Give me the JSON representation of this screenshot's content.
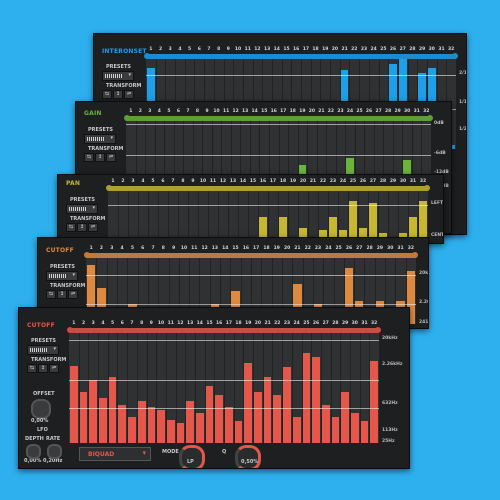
{
  "colors": {
    "background": "#2fb0ee",
    "interonset": "#1e9fe8",
    "gain": "#6bb43c",
    "pan": "#c7b732",
    "cutoff_back": "#dd8a40",
    "cutoff_front": "#e4574a"
  },
  "common": {
    "presets_label": "PRESETS",
    "transform_label": "TRANSFORM",
    "steps": [
      "1",
      "2",
      "3",
      "4",
      "5",
      "6",
      "7",
      "8",
      "9",
      "10",
      "11",
      "12",
      "13",
      "14",
      "15",
      "16",
      "17",
      "18",
      "19",
      "20",
      "21",
      "22",
      "23",
      "24",
      "25",
      "26",
      "27",
      "28",
      "29",
      "30",
      "31",
      "32"
    ]
  },
  "panels": [
    {
      "id": "interonset",
      "title": "INTERONSET",
      "color": "#1e9fe8",
      "right_labels": [
        "2/1",
        "1/1",
        "1/2"
      ],
      "values": [
        0.9,
        0.32,
        0.18,
        0.05,
        0.22,
        0.1,
        0.05,
        0.12,
        0.05,
        0.05,
        0.05,
        0.14,
        0.05,
        0.05,
        0.05,
        0.05,
        0.05,
        0.05,
        0.05,
        0.08,
        0.88,
        0.05,
        0.05,
        0.05,
        0.05,
        0.95,
        1.0,
        0.05,
        0.85,
        0.9,
        0.05,
        0.05
      ]
    },
    {
      "id": "gain",
      "title": "GAIN",
      "color": "#6bb43c",
      "right_labels": [
        "0dB",
        "-6dB",
        "-12dB",
        "-18dB"
      ],
      "values": [
        0,
        0,
        0,
        0,
        0,
        0,
        0,
        0,
        0,
        0,
        0.07,
        0,
        0,
        0,
        0,
        0.25,
        0.25,
        0.18,
        0.37,
        0,
        0,
        0,
        0,
        0.47,
        0,
        0,
        0,
        0,
        0,
        0.45,
        0.22,
        0.22
      ]
    },
    {
      "id": "pan",
      "title": "PAN",
      "color": "#c7b732",
      "right_labels": [
        "LEFT",
        "CENTER"
      ],
      "values": [
        0,
        0,
        0,
        0,
        0,
        0,
        0,
        0,
        0,
        0,
        0,
        0,
        0,
        0,
        0,
        0.46,
        0,
        0.46,
        0,
        0.22,
        0,
        0.18,
        0.46,
        0.18,
        0.8,
        0.22,
        0.75,
        0.12,
        0,
        0.12,
        0.46,
        0.8
      ]
    },
    {
      "id": "cutoff_back",
      "title": "CUTOFF",
      "color": "#dd8a40",
      "right_labels": [
        "20kHz",
        "2.26kHz",
        "241Hz"
      ],
      "values": [
        0.9,
        0.55,
        0.05,
        0.15,
        0.3,
        0.2,
        0.05,
        0.1,
        0.05,
        0.25,
        0.08,
        0.05,
        0.3,
        0.05,
        0.5,
        0.05,
        0.05,
        0.05,
        0.05,
        0.05,
        0.6,
        0.05,
        0.3,
        0.15,
        0.05,
        0.85,
        0.35,
        0.05,
        0.35,
        0.05,
        0.35,
        0.8
      ]
    },
    {
      "id": "cutoff_front",
      "title": "CUTOFF",
      "color": "#e4574a",
      "right_labels": [
        "20kHz",
        "2.26kHz",
        "632Hz",
        "113Hz",
        "25Hz"
      ],
      "values": [
        0.7,
        0.46,
        0.57,
        0.41,
        0.6,
        0.35,
        0.24,
        0.38,
        0.33,
        0.3,
        0.21,
        0.18,
        0.38,
        0.27,
        0.52,
        0.44,
        0.33,
        0.2,
        0.73,
        0.46,
        0.6,
        0.44,
        0.69,
        0.24,
        0.82,
        0.78,
        0.35,
        0.24,
        0.46,
        0.27,
        0.2,
        0.75
      ]
    }
  ],
  "front_controls": {
    "offset_label": "OFFSET",
    "offset_value": "0,00%",
    "lfo_label": "LFO",
    "depth_label": "DEPTH",
    "rate_label": "RATE",
    "depth_value": "0,00%",
    "rate_value": "0,20Hz",
    "filter_type": "BIQUAD",
    "mode_label": "MODE",
    "mode_value": "LP",
    "q_label": "Q",
    "q_value": "0,50%"
  }
}
